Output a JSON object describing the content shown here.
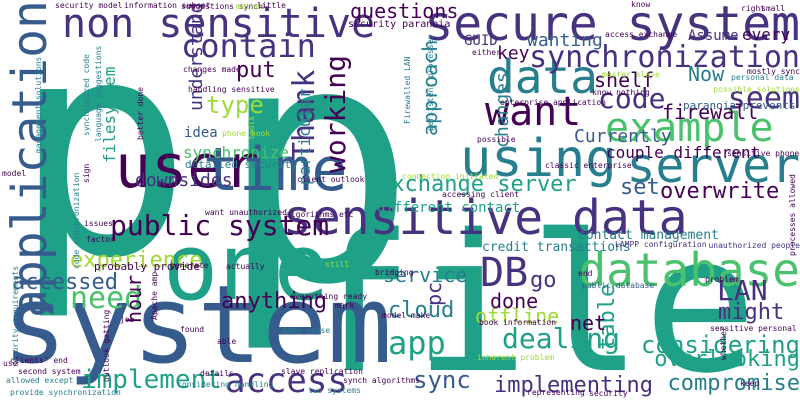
{
  "palette": {
    "dark_purple": "#440154",
    "indigo": "#46327e",
    "blue": "#365c8d",
    "teal_blue": "#277f8e",
    "teal": "#1fa187",
    "green": "#4ac16d",
    "lime": "#a0da39",
    "yellow": "#fde725"
  },
  "words": [
    {
      "id": "p-left",
      "text": "p",
      "color": "#1fa187"
    },
    {
      "id": "p-right",
      "text": "p",
      "color": "#1fa187"
    },
    {
      "id": "file",
      "text": "file",
      "color": "#1fa187"
    },
    {
      "id": "system",
      "text": "system",
      "color": "#365c8d"
    },
    {
      "id": "one",
      "text": "one",
      "color": "#1fa187"
    },
    {
      "id": "secure-system",
      "text": "secure system",
      "color": "#46327e"
    },
    {
      "id": "non-sensitive",
      "text": "non sensitive",
      "color": "#46327e"
    },
    {
      "id": "sensitive-data",
      "text": "sensitive data",
      "color": "#46327e"
    },
    {
      "id": "application",
      "text": "application",
      "color": "#365c8d"
    },
    {
      "id": "user",
      "text": "user",
      "color": "#440154"
    },
    {
      "id": "time",
      "text": "time",
      "color": "#365c8d"
    },
    {
      "id": "database",
      "text": "database",
      "color": "#4ac16d"
    },
    {
      "id": "data",
      "text": "data",
      "color": "#277f8e"
    },
    {
      "id": "using",
      "text": "using",
      "color": "#277f8e"
    },
    {
      "id": "server",
      "text": "server",
      "color": "#277f8e"
    },
    {
      "id": "example",
      "text": "example",
      "color": "#4ac16d"
    },
    {
      "id": "want",
      "text": "want",
      "color": "#440154"
    },
    {
      "id": "contain",
      "text": "contain",
      "color": "#46327e"
    },
    {
      "id": "synchronization",
      "text": "synchronization",
      "color": "#46327e"
    },
    {
      "id": "public-system",
      "text": "public system",
      "color": "#440154"
    },
    {
      "id": "access",
      "text": "access",
      "color": "#46327e"
    },
    {
      "id": "db",
      "text": "DB",
      "color": "#46327e"
    },
    {
      "id": "app",
      "text": "app",
      "color": "#1fa187"
    },
    {
      "id": "working",
      "text": "working",
      "color": "#440154"
    },
    {
      "id": "thank",
      "text": "Thank",
      "color": "#46327e"
    },
    {
      "id": "code",
      "text": "code",
      "color": "#46327e"
    },
    {
      "id": "seem",
      "text": "seem",
      "color": "#46327e"
    },
    {
      "id": "lan",
      "text": "LAN",
      "color": "#46327e"
    },
    {
      "id": "need",
      "text": "need",
      "color": "#4ac16d"
    },
    {
      "id": "sync",
      "text": "sync",
      "color": "#365c8d"
    },
    {
      "id": "implement",
      "text": "implement",
      "color": "#1fa187"
    },
    {
      "id": "considering",
      "text": "considering",
      "color": "#1fa187"
    },
    {
      "id": "compromise",
      "text": "compromise",
      "color": "#277f8e"
    },
    {
      "id": "implementing",
      "text": "implementing",
      "color": "#46327e"
    },
    {
      "id": "dealing",
      "text": "dealing",
      "color": "#1fa187"
    },
    {
      "id": "overlooking",
      "text": "overlooking",
      "color": "#1fa187"
    },
    {
      "id": "might",
      "text": "might",
      "color": "#46327e"
    },
    {
      "id": "exchange-server",
      "text": "exchange server",
      "color": "#1fa187"
    },
    {
      "id": "experience",
      "text": "experience",
      "color": "#a0da39"
    },
    {
      "id": "accessed",
      "text": "accessed",
      "color": "#365c8d"
    },
    {
      "id": "anything",
      "text": "anything",
      "color": "#440154"
    },
    {
      "id": "overwrite",
      "text": "overwrite",
      "color": "#440154"
    },
    {
      "id": "set",
      "text": "set",
      "color": "#365c8d"
    },
    {
      "id": "type",
      "text": "type",
      "color": "#a0da39"
    },
    {
      "id": "put",
      "text": "put",
      "color": "#440154"
    },
    {
      "id": "go",
      "text": "go",
      "color": "#46327e"
    },
    {
      "id": "cloud",
      "text": "cloud",
      "color": "#277f8e"
    },
    {
      "id": "service",
      "text": "service",
      "color": "#277f8e"
    },
    {
      "id": "offline",
      "text": "offline",
      "color": "#a0da39"
    },
    {
      "id": "done",
      "text": "done",
      "color": "#440154"
    },
    {
      "id": "table",
      "text": "table",
      "color": "#1fa187"
    },
    {
      "id": "net",
      "text": "net",
      "color": "#440154"
    },
    {
      "id": "pc",
      "text": "pc",
      "color": "#46327e"
    },
    {
      "id": "hour",
      "text": "hour",
      "color": "#440154"
    },
    {
      "id": "firewall",
      "text": "firewall",
      "color": "#440154"
    },
    {
      "id": "now",
      "text": "Now",
      "color": "#277f8e"
    },
    {
      "id": "shelf",
      "text": "shelf",
      "color": "#440154"
    },
    {
      "id": "key",
      "text": "key",
      "color": "#440154"
    },
    {
      "id": "wanting",
      "text": "wanting",
      "color": "#365c8d"
    },
    {
      "id": "guid",
      "text": "GUID",
      "color": "#46327e"
    },
    {
      "id": "questions",
      "text": "questions",
      "color": "#440154"
    },
    {
      "id": "currently",
      "text": "Currently",
      "color": "#365c8d"
    },
    {
      "id": "couple-different",
      "text": "couple different",
      "color": "#440154"
    },
    {
      "id": "idea",
      "text": "idea",
      "color": "#365c8d"
    },
    {
      "id": "synchronize",
      "text": "synchronize",
      "color": "#4ac16d"
    },
    {
      "id": "downsides",
      "text": "downsides",
      "color": "#46327e"
    },
    {
      "id": "understand",
      "text": "understand",
      "color": "#46327e"
    },
    {
      "id": "approach",
      "text": "approach",
      "color": "#277f8e"
    },
    {
      "id": "changes",
      "text": "changes",
      "color": "#277f8e"
    },
    {
      "id": "particular",
      "text": "particular",
      "color": "#277f8e"
    },
    {
      "id": "filesystem",
      "text": "filesystem",
      "color": "#1fa187"
    },
    {
      "id": "assume",
      "text": "Assume",
      "color": "#46327e"
    },
    {
      "id": "every",
      "text": "every",
      "color": "#440154"
    },
    {
      "id": "paranoia-prevents",
      "text": "paranoia prevents",
      "color": "#365c8d"
    },
    {
      "id": "different-contact",
      "text": "different contact",
      "color": "#1fa187"
    },
    {
      "id": "credit-transactions",
      "text": "credit transactions",
      "color": "#277f8e"
    },
    {
      "id": "contact-management",
      "text": "contact management",
      "color": "#277f8e"
    },
    {
      "id": "detailed-security",
      "text": "detailed security",
      "color": "#277f8e"
    },
    {
      "id": "probably-provide",
      "text": "probably provide",
      "color": "#440154"
    },
    {
      "id": "want-unauthorized",
      "text": "want unauthorized",
      "color": "#440154"
    },
    {
      "id": "sensitive-phone",
      "text": "sensitive phone",
      "color": "#440154"
    },
    {
      "id": "security-paranoia",
      "text": "security paranoia",
      "color": "#440154"
    },
    {
      "id": "unauthorized-people",
      "text": "unauthorized people",
      "color": "#46327e"
    },
    {
      "id": "lampp-configuration",
      "text": "LAMPP configuration",
      "color": "#46327e"
    },
    {
      "id": "public-database",
      "text": "public database",
      "color": "#365c8d"
    },
    {
      "id": "book-information",
      "text": "book information",
      "color": "#440154"
    },
    {
      "id": "model-make",
      "text": "model make",
      "color": "#440154"
    },
    {
      "id": "synch-algorithms",
      "text": "synch algorithms",
      "color": "#440154"
    },
    {
      "id": "two-systems",
      "text": "two systems",
      "color": "#277f8e"
    },
    {
      "id": "slave-replication",
      "text": "slave replication",
      "color": "#440154"
    },
    {
      "id": "considering-handling",
      "text": "considering handling",
      "color": "#277f8e"
    },
    {
      "id": "provide-synchronization",
      "text": "provide synchronization",
      "color": "#277f8e"
    },
    {
      "id": "allowed-except",
      "text": "allowed except",
      "color": "#277f8e"
    },
    {
      "id": "second-system",
      "text": "second system",
      "color": "#440154"
    },
    {
      "id": "sensitive-personal",
      "text": "sensitive personal",
      "color": "#440154"
    },
    {
      "id": "handling-sensitive",
      "text": "handling sensitive",
      "color": "#440154"
    },
    {
      "id": "suggestions-synch",
      "text": "suggestions synch",
      "color": "#440154"
    },
    {
      "id": "security-model",
      "text": "security model",
      "color": "#440154"
    },
    {
      "id": "information-subset",
      "text": "information subset",
      "color": "#440154"
    },
    {
      "id": "changes-made",
      "text": "changes made",
      "color": "#440154"
    },
    {
      "id": "phone-book",
      "text": "phone book",
      "color": "#a0da39"
    },
    {
      "id": "algorithms-etc",
      "text": "algorithms etc",
      "color": "#440154"
    },
    {
      "id": "client-outlook",
      "text": "client outlook",
      "color": "#440154"
    },
    {
      "id": "make-sense",
      "text": "make sense",
      "color": "#277f8e"
    },
    {
      "id": "inherent-problem",
      "text": "inherent problem",
      "color": "#a0da39"
    },
    {
      "id": "firewalled-lan",
      "text": "Firewalled LAN",
      "color": "#277f8e"
    },
    {
      "id": "persistent-processes",
      "text": "persistent processes",
      "color": "#277f8e"
    },
    {
      "id": "enterprise-application",
      "text": "enterprise application",
      "color": "#440154"
    },
    {
      "id": "personal-data",
      "text": "personal data",
      "color": "#277f8e"
    },
    {
      "id": "possible-solutions",
      "text": "possible solutions",
      "color": "#a0da39"
    },
    {
      "id": "master-slave",
      "text": "master slave",
      "color": "#a0da39"
    },
    {
      "id": "management-solutions",
      "text": "management solutions",
      "color": "#277f8e"
    },
    {
      "id": "language-suggestions",
      "text": "language suggestions",
      "color": "#277f8e"
    },
    {
      "id": "synchronized-code",
      "text": "synchronized code",
      "color": "#277f8e"
    },
    {
      "id": "security-requirements",
      "text": "security requirements",
      "color": "#277f8e"
    },
    {
      "id": "code-synchronization",
      "text": "code synchronization",
      "color": "#277f8e"
    },
    {
      "id": "apache-amp",
      "text": "Apache amp",
      "color": "#440154"
    },
    {
      "id": "processes-allowed",
      "text": "processes allowed",
      "color": "#440154"
    },
    {
      "id": "small",
      "text": "small",
      "color": "#440154"
    },
    {
      "id": "access-exchange",
      "text": "access exchange",
      "color": "#440154"
    },
    {
      "id": "know-nothing",
      "text": "know nothing",
      "color": "#440154"
    },
    {
      "id": "everything-ready",
      "text": "everything ready",
      "color": "#440154"
    },
    {
      "id": "connection-initiated",
      "text": "connection initiated",
      "color": "#a0da39"
    },
    {
      "id": "classic-enterprise",
      "text": "classic enterprise",
      "color": "#440154"
    },
    {
      "id": "accessing-client",
      "text": "accessing client",
      "color": "#440154"
    },
    {
      "id": "w-method",
      "text": "method",
      "color": "#a0da39"
    },
    {
      "id": "w-know",
      "text": "know",
      "color": "#440154"
    },
    {
      "id": "w-model",
      "text": "model",
      "color": "#440154"
    },
    {
      "id": "w-factor",
      "text": "factor",
      "color": "#440154"
    },
    {
      "id": "w-issues",
      "text": "issues",
      "color": "#440154"
    },
    {
      "id": "w-generate",
      "text": "generate",
      "color": "#440154"
    },
    {
      "id": "w-either",
      "text": "either",
      "color": "#440154"
    },
    {
      "id": "w-possible",
      "text": "possible",
      "color": "#440154"
    },
    {
      "id": "w-actually",
      "text": "actually",
      "color": "#440154"
    },
    {
      "id": "w-still",
      "text": "still",
      "color": "#a0da39"
    },
    {
      "id": "w-found",
      "text": "found",
      "color": "#440154"
    },
    {
      "id": "w-able",
      "text": "able",
      "color": "#440154"
    },
    {
      "id": "w-job",
      "text": "job",
      "color": "#440154"
    },
    {
      "id": "w-mark",
      "text": "mark",
      "color": "#440154"
    },
    {
      "id": "w-details",
      "text": "details",
      "color": "#440154"
    },
    {
      "id": "w-end",
      "text": "end",
      "color": "#440154"
    },
    {
      "id": "w-problem",
      "text": "problem",
      "color": "#440154"
    },
    {
      "id": "w-bridging",
      "text": "bridging",
      "color": "#440154"
    },
    {
      "id": "w-little",
      "text": "little",
      "color": "#440154"
    },
    {
      "id": "w-right",
      "text": "right",
      "color": "#440154"
    },
    {
      "id": "w-better-done",
      "text": "better done",
      "color": "#440154"
    },
    {
      "id": "w-tools",
      "text": "tools",
      "color": "#a0da39"
    },
    {
      "id": "w-whether",
      "text": "whether",
      "color": "#440154"
    },
    {
      "id": "w-use",
      "text": "use",
      "color": "#440154"
    },
    {
      "id": "w-clients-end",
      "text": "clients' end",
      "color": "#440154"
    },
    {
      "id": "w-sign",
      "text": "sign",
      "color": "#440154"
    },
    {
      "id": "w-keep",
      "text": "keep",
      "color": "#440154"
    },
    {
      "id": "w-representing",
      "text": "representing",
      "color": "#440154"
    },
    {
      "id": "w-security",
      "text": "security",
      "color": "#440154"
    },
    {
      "id": "w-outlook-getting",
      "text": "outlook getting",
      "color": "#440154"
    },
    {
      "id": "w-mostly-sync",
      "text": "mostly sync",
      "color": "#440154"
    }
  ]
}
